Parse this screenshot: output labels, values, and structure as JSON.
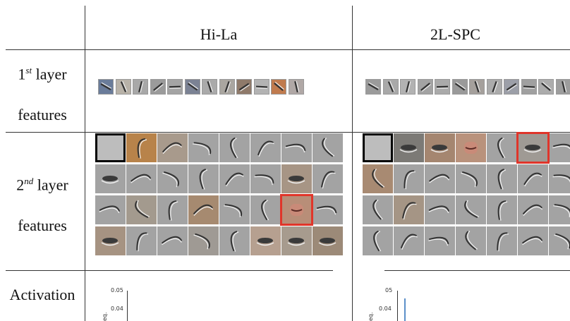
{
  "columns": {
    "left": "Hi-La",
    "right": "2L-SPC"
  },
  "rows": {
    "first_layer": {
      "main": "1",
      "sup": "st",
      "rest": " layer",
      "line2": "features"
    },
    "second_layer": {
      "main": "2",
      "sup": "nd",
      "rest": " layer",
      "line2": "features"
    },
    "activation": "Activation"
  },
  "activation_axes": {
    "left": {
      "ticks": [
        "0.05",
        "0.04"
      ],
      "ylabel": "eq."
    },
    "right": {
      "ticks": [
        "05",
        "0.04"
      ],
      "ylabel": "eq."
    }
  },
  "first_layer_patches": {
    "left": [
      "#6a7c9a",
      "#b8b2a8",
      "#a8a8a8",
      "#9b9b9b",
      "#a4a4a4",
      "#7b8294",
      "#aaaaaa",
      "#aaa6a0",
      "#8f7a6a",
      "#b3b3b3",
      "#c07b4e",
      "#b0a8a6"
    ],
    "right": [
      "#9b9b9b",
      "#a9a9a9",
      "#b2b2b2",
      "#a3a3a3",
      "#aaaaaa",
      "#9a9a9a",
      "#a5a09c",
      "#ababab",
      "#9c9fa8",
      "#a0a0a0",
      "#acacac",
      "#9d9d9d"
    ]
  },
  "second_layer_tones": {
    "left": [
      "#bdbdbd",
      "#b8834a",
      "#a89a8c",
      "#a3a3a3",
      "#a3a3a3",
      "#a3a3a3",
      "#a3a3a3",
      "#a3a3a3",
      "#a3a3a3",
      "#a3a3a3",
      "#a3a3a3",
      "#a3a3a3",
      "#a3a3a3",
      "#a3a3a3",
      "#a79585",
      "#a3a3a3",
      "#a3a3a3",
      "#a39a8e",
      "#a3a3a3",
      "#a68a70",
      "#a3a3a3",
      "#a3a3a3",
      "#b88e78",
      "#a3a3a3",
      "#a69382",
      "#a3a3a3",
      "#a3a3a3",
      "#9f9a94",
      "#a3a3a3",
      "#b6a090",
      "#a79b8e",
      "#9c8a78"
    ],
    "right": [
      "#bdbdbd",
      "#7c7a76",
      "#a58670",
      "#b9927c",
      "#a3a3a3",
      "#9f9a94",
      "#a3a3a3",
      "#a88a72",
      "#a3a3a3",
      "#a3a3a3",
      "#a3a3a3",
      "#a3a3a3",
      "#a3a3a3",
      "#a3a3a3",
      "#a3a3a3",
      "#a59585",
      "#a3a3a3",
      "#a3a3a3",
      "#a3a3a3",
      "#a3a3a3",
      "#a3a3a3",
      "#a3a3a3",
      "#a3a3a3",
      "#a3a3a3",
      "#a3a3a3",
      "#a3a3a3",
      "#a3a3a3",
      "#a3a3a3"
    ]
  },
  "highlights": {
    "black": "#000000",
    "red": "#e0352a"
  }
}
